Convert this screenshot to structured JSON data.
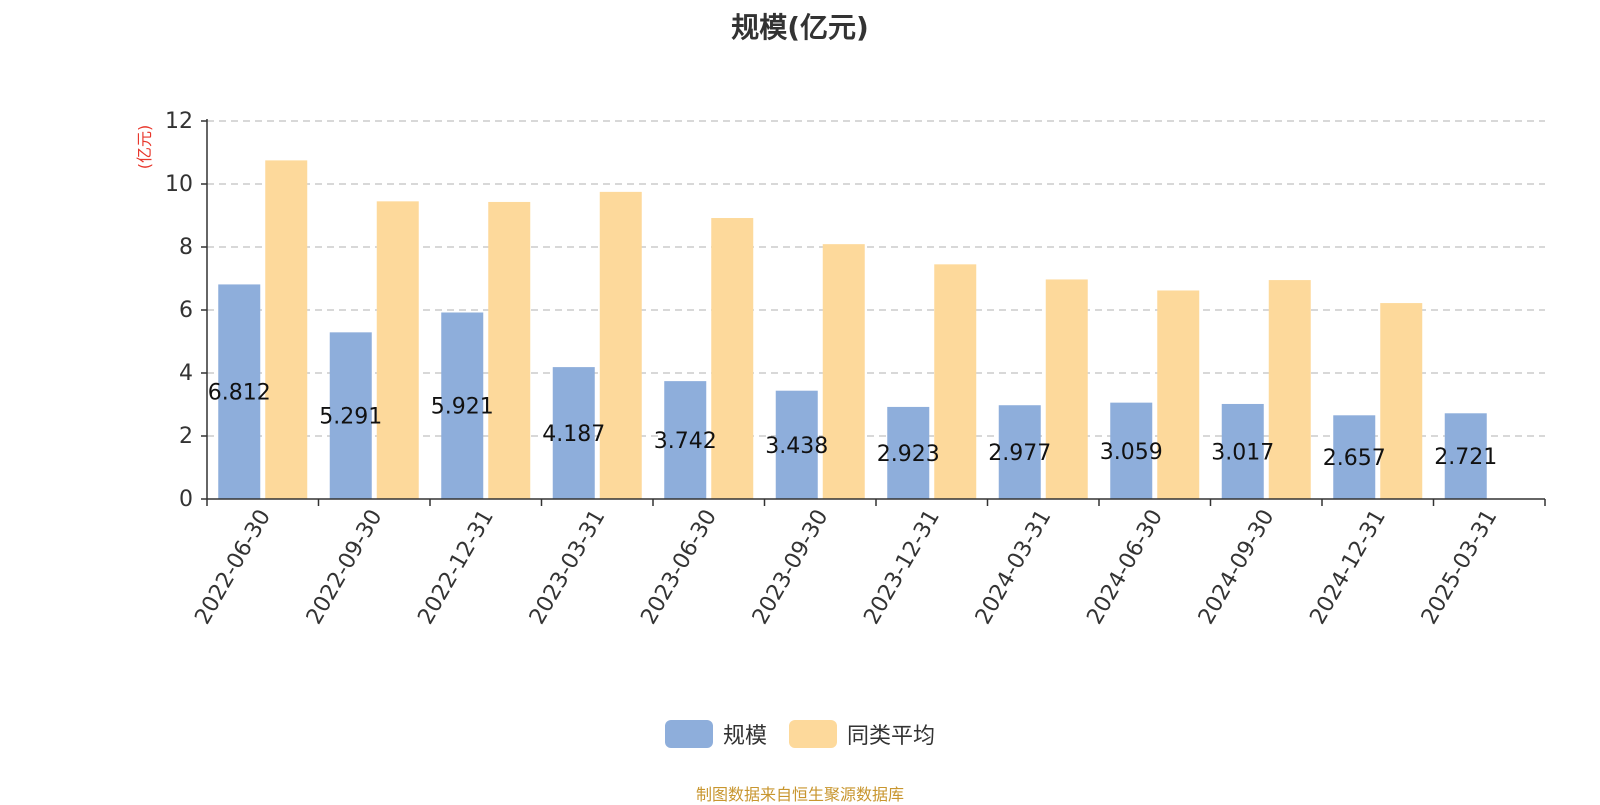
{
  "chart_data": {
    "type": "bar",
    "title": "规模(亿元)",
    "ylabel": "(亿元)",
    "xlabel": "",
    "ylim": [
      0,
      12
    ],
    "yticks": [
      0,
      2,
      4,
      6,
      8,
      10,
      12
    ],
    "grid": true,
    "legend_position": "bottom-center",
    "categories": [
      "2022-06-30",
      "2022-09-30",
      "2022-12-31",
      "2023-03-31",
      "2023-06-30",
      "2023-09-30",
      "2023-12-31",
      "2024-03-31",
      "2024-06-30",
      "2024-09-30",
      "2024-12-31",
      "2025-03-31"
    ],
    "series": [
      {
        "name": "规模",
        "color": "#8eaedb",
        "values": [
          6.812,
          5.291,
          5.921,
          4.187,
          3.742,
          3.438,
          2.923,
          2.977,
          3.059,
          3.017,
          2.657,
          2.721
        ],
        "labels": [
          "6.812",
          "5.291",
          "5.921",
          "4.187",
          "3.742",
          "3.438",
          "2.923",
          "2.977",
          "3.059",
          "3.017",
          "2.657",
          "2.721"
        ]
      },
      {
        "name": "同类平均",
        "color": "#fdd99b",
        "values": [
          10.75,
          9.45,
          9.43,
          9.75,
          8.92,
          8.09,
          7.45,
          6.97,
          6.62,
          6.95,
          6.22,
          null
        ]
      }
    ]
  },
  "source_note": "制图数据来自恒生聚源数据库",
  "colors": {
    "axis": "#333333",
    "grid": "#cccccc",
    "ylabel": "#e8372c",
    "source": "#c8962f"
  }
}
